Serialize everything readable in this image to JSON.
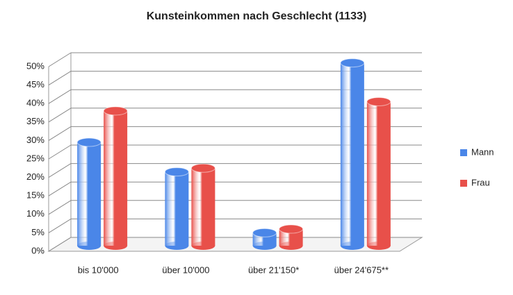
{
  "chart_data": {
    "type": "bar",
    "title": "Kunsteinkommen nach Geschlecht (1133)",
    "categories": [
      "bis 10'000",
      "über 10'000",
      "über 21'150*",
      "über 24'675**"
    ],
    "series": [
      {
        "name": "Mann",
        "color": "#4a86e8",
        "values": [
          28,
          20,
          3.5,
          49.5
        ]
      },
      {
        "name": "Frau",
        "color": "#e8504a",
        "values": [
          36.5,
          21,
          4.5,
          39
        ]
      }
    ],
    "ylim": [
      0,
      50
    ],
    "yticks": [
      {
        "value": 0,
        "label": "0%"
      },
      {
        "value": 5,
        "label": "5%"
      },
      {
        "value": 10,
        "label": "10%"
      },
      {
        "value": 15,
        "label": "15%"
      },
      {
        "value": 20,
        "label": "20%"
      },
      {
        "value": 25,
        "label": "25%"
      },
      {
        "value": 30,
        "label": "30%"
      },
      {
        "value": 35,
        "label": "35%"
      },
      {
        "value": 40,
        "label": "40%"
      },
      {
        "value": 45,
        "label": "45%"
      },
      {
        "value": 50,
        "label": "50%"
      }
    ],
    "grid": true,
    "legend": "right"
  }
}
